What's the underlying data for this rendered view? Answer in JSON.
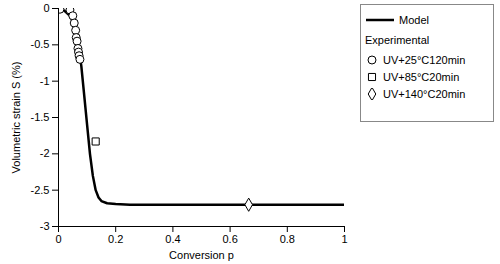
{
  "chart_data": {
    "type": "line",
    "x_label": "Conversion p",
    "y_label": "Volumetric strain S (%)",
    "xlim": [
      0,
      1
    ],
    "ylim": [
      -3,
      0
    ],
    "xticks": [
      0,
      0.2,
      0.4,
      0.6,
      0.8,
      1
    ],
    "yticks": [
      0,
      -0.5,
      -1,
      -1.5,
      -2,
      -2.5,
      -3
    ],
    "grid": false,
    "legend": "right",
    "legend_title": "Experimental",
    "series": [
      {
        "name": "Model",
        "type": "line",
        "color": "#000000",
        "line_style": "solid",
        "x": [
          0,
          0.02,
          0.04,
          0.05,
          0.06,
          0.07,
          0.08,
          0.09,
          0.1,
          0.11,
          0.12,
          0.13,
          0.14,
          0.15,
          0.17,
          0.2,
          0.25,
          0.3,
          0.5,
          1
        ],
        "values": [
          0,
          -0.03,
          -0.1,
          -0.18,
          -0.3,
          -0.5,
          -0.8,
          -1.2,
          -1.6,
          -2.0,
          -2.3,
          -2.5,
          -2.6,
          -2.65,
          -2.68,
          -2.69,
          -2.7,
          -2.7,
          -2.7,
          -2.7
        ]
      },
      {
        "name": "UV+25°C120min",
        "type": "scatter",
        "color": "#000000",
        "marker": "circle",
        "x": [
          0,
          0.005,
          0.04,
          0.05,
          0.055,
          0.06,
          0.062,
          0.065,
          0.068,
          0.07,
          0.072,
          0.075
        ],
        "values": [
          0,
          -0.01,
          -0.02,
          -0.1,
          -0.2,
          -0.3,
          -0.4,
          -0.45,
          -0.55,
          -0.6,
          -0.65,
          -0.7
        ]
      },
      {
        "name": "UV+85°C20min",
        "type": "scatter",
        "color": "#000000",
        "marker": "square",
        "x": [
          0.13
        ],
        "values": [
          -1.83
        ]
      },
      {
        "name": "UV+140°C20min",
        "type": "scatter",
        "color": "#000000",
        "marker": "diamond",
        "x": [
          0.665
        ],
        "values": [
          -2.7
        ]
      }
    ]
  }
}
